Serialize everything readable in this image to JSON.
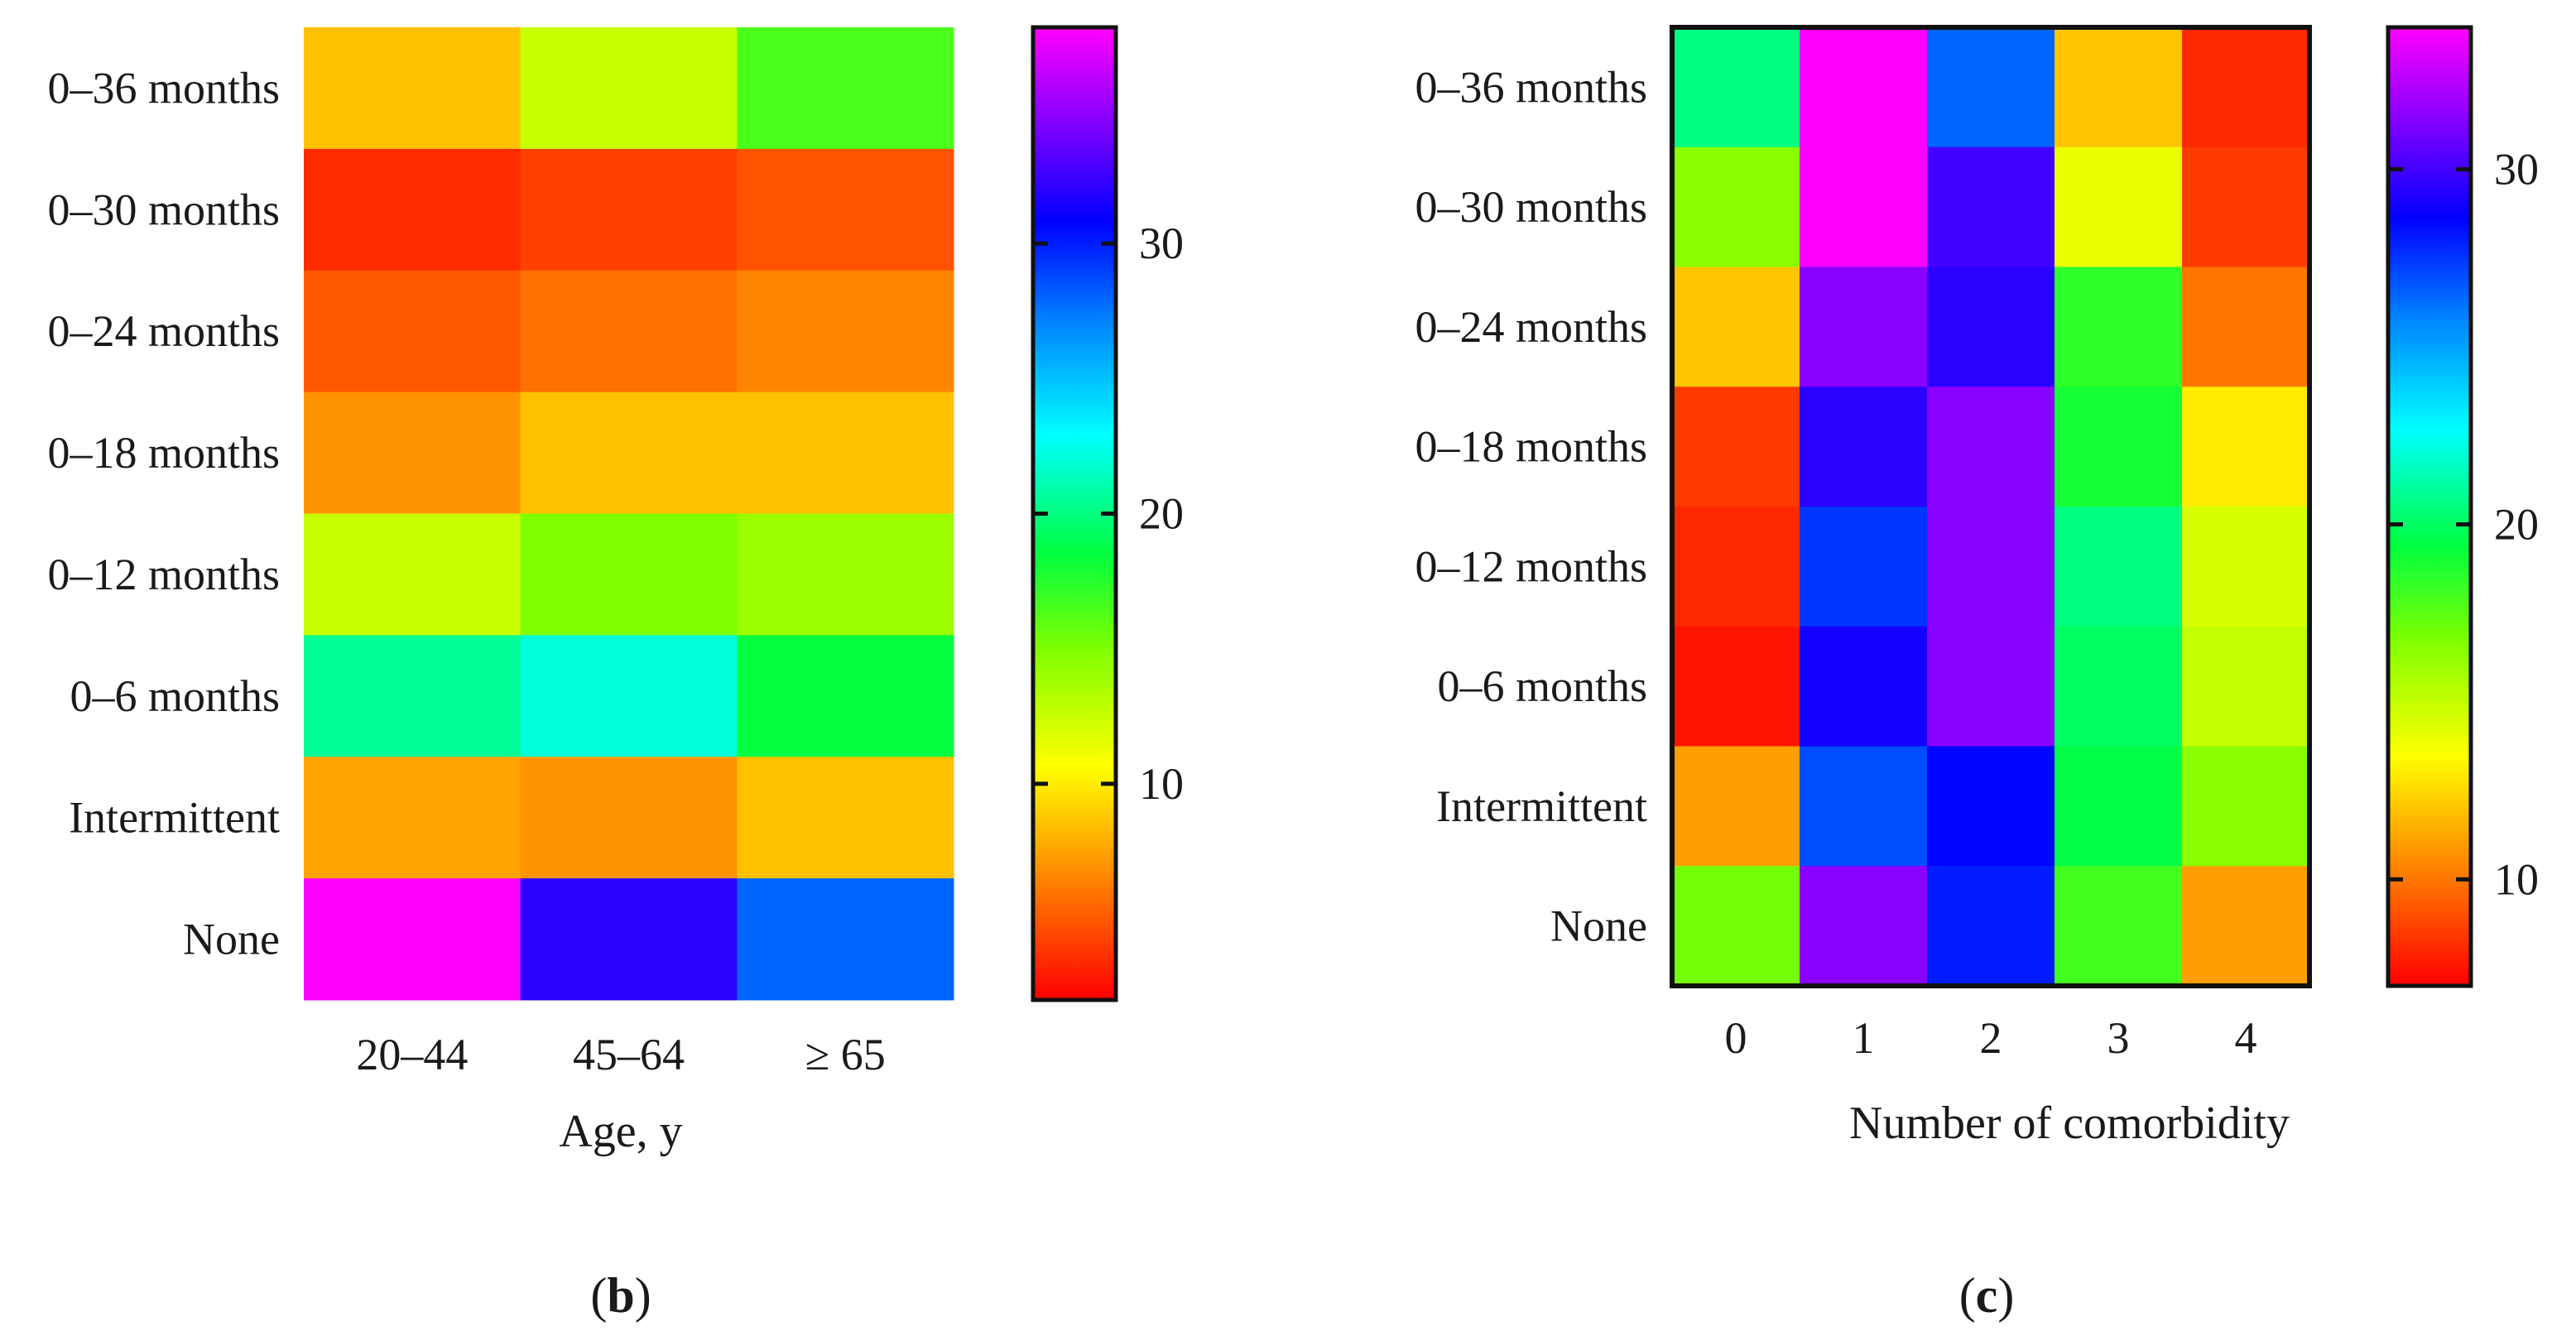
{
  "chart_data": [
    {
      "type": "heatmap",
      "panel": "b",
      "title": "",
      "xlabel": "Age, y",
      "ylabel": "",
      "x_categories": [
        "20–44",
        "45–64",
        "≥ 65"
      ],
      "y_categories": [
        "0–36 months",
        "0–30 months",
        "0–24 months",
        "0–18 months",
        "0–12 months",
        "0–6 months",
        "Intermittent",
        "None"
      ],
      "values": [
        [
          8.5,
          12.5,
          16.5
        ],
        [
          3.5,
          4.2,
          4.8
        ],
        [
          5.0,
          5.8,
          6.5
        ],
        [
          7.0,
          8.5,
          8.5
        ],
        [
          12.5,
          15.0,
          14.0
        ],
        [
          20.5,
          22.0,
          18.5
        ],
        [
          7.5,
          7.0,
          8.5
        ],
        [
          38.0,
          32.0,
          28.0
        ]
      ],
      "colorbar": {
        "min": 2,
        "max": 38,
        "ticks": [
          10,
          20,
          30
        ]
      }
    },
    {
      "type": "heatmap",
      "panel": "c",
      "title": "",
      "xlabel": "Number of comorbidity",
      "ylabel": "",
      "x_categories": [
        "0",
        "1",
        "2",
        "3",
        "4"
      ],
      "y_categories": [
        "0–36 months",
        "0–30 months",
        "0–24 months",
        "0–18 months",
        "0–12 months",
        "0–6 months",
        "Intermittent",
        "None"
      ],
      "values": [
        [
          20.5,
          34.5,
          26.5,
          12.0,
          8.0
        ],
        [
          16.5,
          34.0,
          30.0,
          14.0,
          8.5
        ],
        [
          12.0,
          31.5,
          29.5,
          18.5,
          10.0
        ],
        [
          8.5,
          29.5,
          31.5,
          19.0,
          13.0
        ],
        [
          8.0,
          27.5,
          31.5,
          20.5,
          14.5
        ],
        [
          7.5,
          29.0,
          31.5,
          20.0,
          15.0
        ],
        [
          11.0,
          27.0,
          28.5,
          19.5,
          16.5
        ],
        [
          17.0,
          31.5,
          28.0,
          18.0,
          11.0
        ]
      ],
      "colorbar": {
        "min": 7,
        "max": 34,
        "ticks": [
          10,
          20,
          30
        ]
      }
    }
  ],
  "panels": {
    "b": {
      "letter": "b"
    },
    "c": {
      "letter": "c"
    }
  },
  "colors": {
    "scale": [
      "#ff0000",
      "#ff8000",
      "#ffff00",
      "#80ff00",
      "#00ff40",
      "#00ffff",
      "#0080ff",
      "#0000ff",
      "#8000ff",
      "#ff00ff"
    ]
  }
}
